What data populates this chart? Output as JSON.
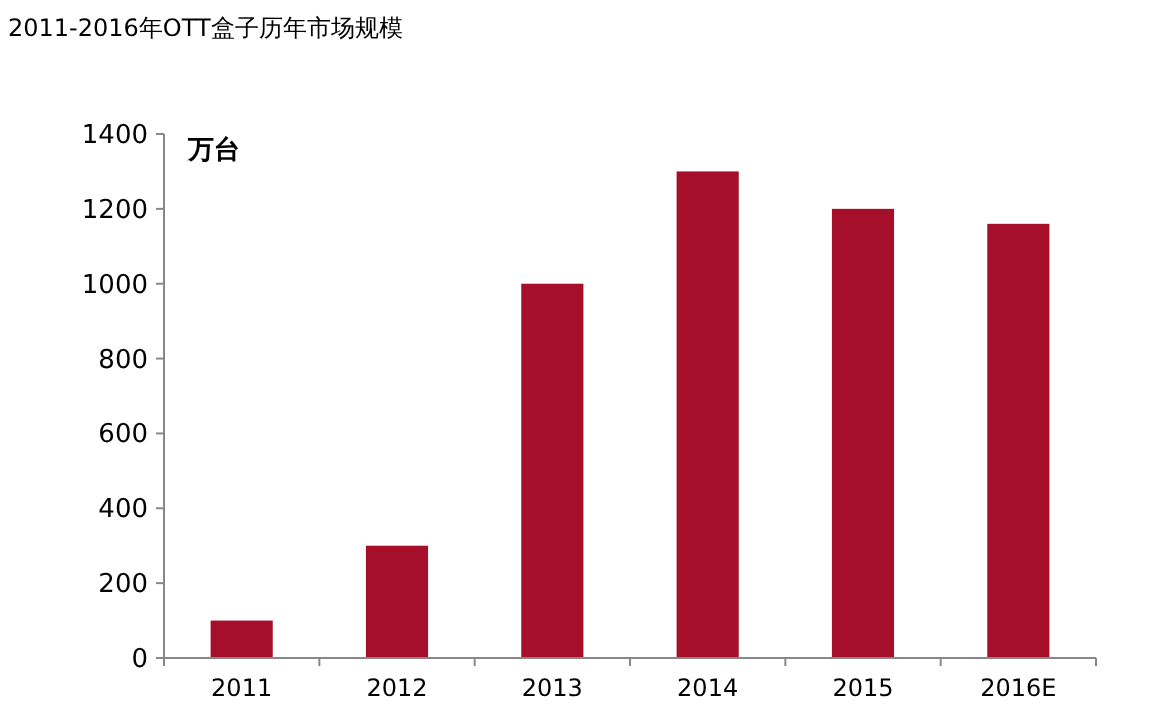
{
  "chart_data": {
    "type": "bar",
    "title": "2011-2016年OTT盒子历年市场规模",
    "ylabel": "万台",
    "categories": [
      "2011",
      "2012",
      "2013",
      "2014",
      "2015",
      "2016E"
    ],
    "values": [
      100,
      300,
      1000,
      1300,
      1200,
      1160
    ],
    "color": "#a50f2a",
    "ylim": [
      0,
      1400
    ],
    "yticks": [
      0,
      200,
      400,
      600,
      800,
      1000,
      1200,
      1400
    ]
  }
}
